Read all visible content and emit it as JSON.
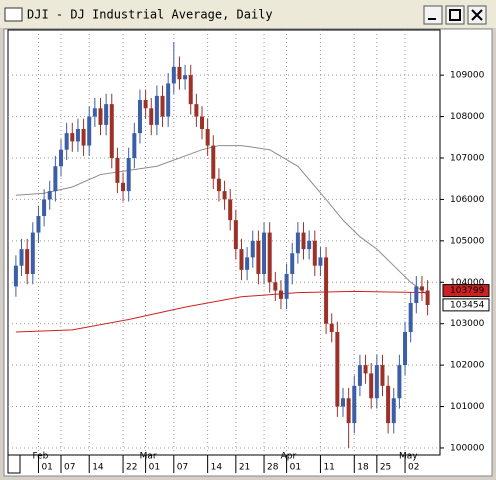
{
  "chart_data": {
    "type": "candlestick",
    "title": "DJI - DJ Industrial Average, Daily",
    "open": [
      10390,
      10440,
      10480,
      10420,
      10520,
      10560,
      10600,
      10620,
      10680,
      10720,
      10760,
      10740,
      10770,
      10730,
      10800,
      10820,
      10780,
      10830,
      10700,
      10640,
      10620,
      10700,
      10760,
      10840,
      10820,
      10780,
      10850,
      10800,
      10880,
      10920,
      10890,
      10900,
      10830,
      10800,
      10770,
      10730,
      10650,
      10620,
      10600,
      10550,
      10480,
      10430,
      10460,
      10500,
      10420,
      10520,
      10400,
      10380,
      10360,
      10420,
      10470,
      10520,
      10480,
      10500,
      10440,
      10460,
      10300,
      10280,
      10100,
      10120,
      10060,
      10150,
      10200,
      10180,
      10120,
      10200,
      10150,
      10060,
      10120,
      10200,
      10280,
      10350,
      10390,
      10380
    ],
    "high": [
      10465,
      10505,
      10505,
      10545,
      10585,
      10625,
      10645,
      10705,
      10745,
      10785,
      10785,
      10795,
      10795,
      10825,
      10845,
      10845,
      10855,
      10855,
      10725,
      10665,
      10725,
      10785,
      10865,
      10865,
      10845,
      10875,
      10875,
      10905,
      10980,
      10945,
      10925,
      10925,
      10855,
      10825,
      10795,
      10755,
      10675,
      10645,
      10625,
      10575,
      10505,
      10485,
      10525,
      10525,
      10545,
      10545,
      10425,
      10405,
      10445,
      10495,
      10545,
      10545,
      10525,
      10525,
      10485,
      10485,
      10325,
      10305,
      10145,
      10145,
      10175,
      10225,
      10225,
      10205,
      10225,
      10225,
      10175,
      10145,
      10225,
      10305,
      10375,
      10415,
      10415,
      10405
    ],
    "low": [
      10365,
      10415,
      10395,
      10395,
      10495,
      10535,
      10575,
      10595,
      10655,
      10695,
      10715,
      10715,
      10705,
      10705,
      10775,
      10755,
      10755,
      10675,
      10615,
      10595,
      10595,
      10675,
      10735,
      10795,
      10755,
      10755,
      10775,
      10775,
      10855,
      10865,
      10865,
      10805,
      10775,
      10745,
      10705,
      10625,
      10595,
      10575,
      10525,
      10455,
      10405,
      10405,
      10435,
      10395,
      10395,
      10375,
      10355,
      10335,
      10335,
      10395,
      10445,
      10455,
      10455,
      10415,
      10415,
      10275,
      10255,
      10075,
      10075,
      10000,
      10035,
      10125,
      10155,
      10095,
      10095,
      10125,
      10035,
      10035,
      10095,
      10175,
      10255,
      10325,
      10355,
      10320
    ],
    "close": [
      10440,
      10480,
      10420,
      10520,
      10560,
      10600,
      10620,
      10680,
      10720,
      10760,
      10740,
      10770,
      10730,
      10800,
      10820,
      10780,
      10830,
      10700,
      10640,
      10620,
      10700,
      10760,
      10840,
      10820,
      10780,
      10850,
      10800,
      10880,
      10920,
      10890,
      10900,
      10830,
      10800,
      10770,
      10730,
      10650,
      10620,
      10600,
      10550,
      10480,
      10430,
      10460,
      10500,
      10420,
      10520,
      10400,
      10380,
      10360,
      10420,
      10470,
      10520,
      10480,
      10500,
      10440,
      10460,
      10300,
      10280,
      10100,
      10120,
      10060,
      10150,
      10200,
      10180,
      10120,
      10200,
      10150,
      10060,
      10120,
      10200,
      10280,
      10350,
      10390,
      10380,
      10345
    ],
    "up_color": "#3b5ea6",
    "down_color": "#9c3128",
    "series": [
      {
        "color": "#8c8c8c",
        "x": [
          0,
          5,
          10,
          15,
          20,
          25,
          30,
          33,
          36,
          40,
          45,
          50,
          55,
          58,
          61,
          64,
          67,
          70,
          73
        ],
        "values": [
          10610,
          10615,
          10630,
          10660,
          10670,
          10680,
          10705,
          10720,
          10730,
          10730,
          10720,
          10680,
          10600,
          10550,
          10510,
          10480,
          10440,
          10400,
          10370
        ]
      },
      {
        "color": "#cc2222",
        "x": [
          0,
          10,
          20,
          30,
          40,
          50,
          60,
          73
        ],
        "values": [
          10280,
          10285,
          10310,
          10340,
          10365,
          10375,
          10378,
          10375
        ]
      }
    ],
    "xlim": [
      -1.4,
      75.2
    ],
    "ylim": [
      9983,
      11009
    ],
    "yticks": [
      {
        "value": 10000,
        "label": "100000"
      },
      {
        "value": 10100,
        "label": "101000"
      },
      {
        "value": 10200,
        "label": "102000"
      },
      {
        "value": 10300,
        "label": "103000"
      },
      {
        "value": 10400,
        "label": "104000"
      },
      {
        "value": 10500,
        "label": "105000"
      },
      {
        "value": 10600,
        "label": "106000"
      },
      {
        "value": 10700,
        "label": "107000"
      },
      {
        "value": 10800,
        "label": "108000"
      },
      {
        "value": 10900,
        "label": "109000"
      }
    ],
    "xticks": [
      {
        "value": 4,
        "label": "01"
      },
      {
        "value": 8,
        "label": "07"
      },
      {
        "value": 13,
        "label": "14"
      },
      {
        "value": 19,
        "label": "22"
      },
      {
        "value": 23,
        "label": "01"
      },
      {
        "value": 28,
        "label": "07"
      },
      {
        "value": 34,
        "label": "14"
      },
      {
        "value": 39,
        "label": "21"
      },
      {
        "value": 44,
        "label": "28"
      },
      {
        "value": 48,
        "label": "01"
      },
      {
        "value": 54,
        "label": "11"
      },
      {
        "value": 60,
        "label": "18"
      },
      {
        "value": 64,
        "label": "25"
      },
      {
        "value": 69,
        "label": "02"
      }
    ],
    "month_ticks": [
      {
        "value": 4,
        "label": "Feb"
      },
      {
        "value": 23,
        "label": "Mar"
      },
      {
        "value": 48,
        "label": "Apr"
      },
      {
        "value": 69,
        "label": "May"
      }
    ],
    "price_labels": [
      {
        "value": 10379.9,
        "label": "103799",
        "color": "#cc2222"
      },
      {
        "value": 10345.4,
        "label": "103454",
        "color": "#ffffff"
      }
    ],
    "grid": true
  }
}
